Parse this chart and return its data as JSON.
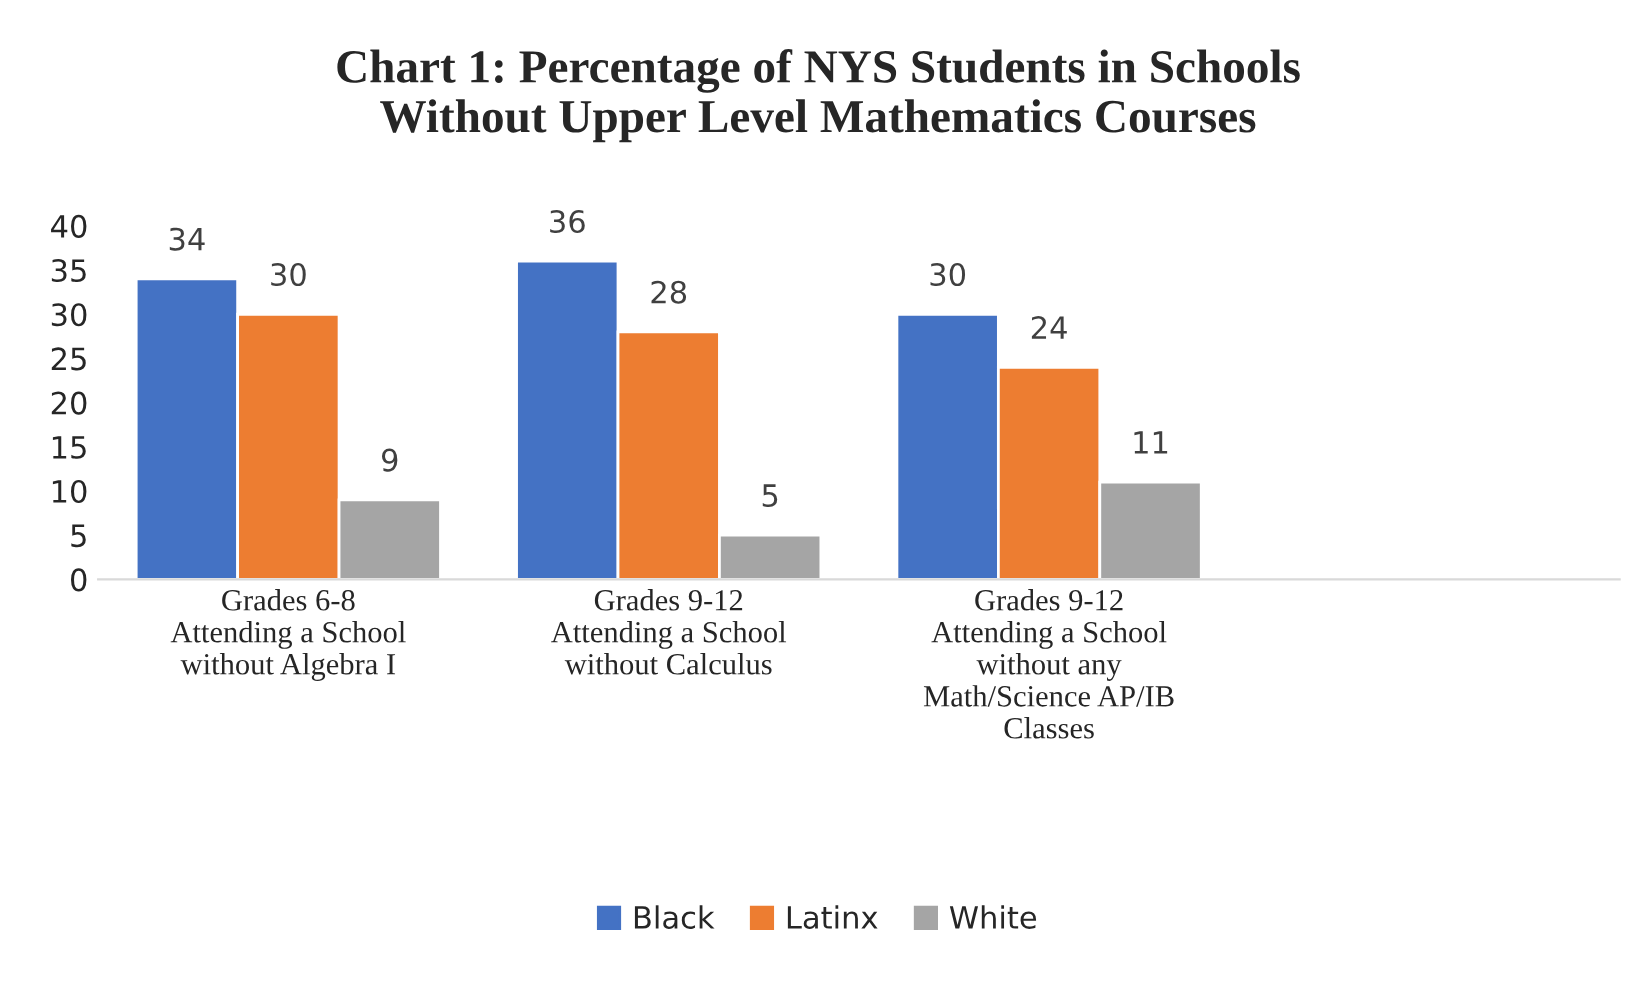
{
  "chart_data": {
    "type": "bar",
    "title": "Chart 1: Percentage of NYS Students in Schools\nWithout Upper Level Mathematics Courses",
    "categories": [
      "Grades 6-8\nAttending a School\nwithout Algebra I",
      "Grades 9-12\nAttending a School\nwithout Calculus",
      "Grades 9-12\nAttending a School\nwithout any\nMath/Science AP/IB\nClasses"
    ],
    "series": [
      {
        "name": "Black",
        "color": "#4472c4",
        "values": [
          34,
          36,
          30
        ]
      },
      {
        "name": "Latinx",
        "color": "#ed7d31",
        "values": [
          30,
          28,
          24
        ]
      },
      {
        "name": "White",
        "color": "#a5a5a5",
        "values": [
          9,
          5,
          11
        ]
      }
    ],
    "ylim": [
      0,
      40
    ],
    "yticks": [
      0,
      5,
      10,
      15,
      20,
      25,
      30,
      35,
      40
    ],
    "grid": false,
    "legend": "bottom",
    "data_labels": true
  }
}
